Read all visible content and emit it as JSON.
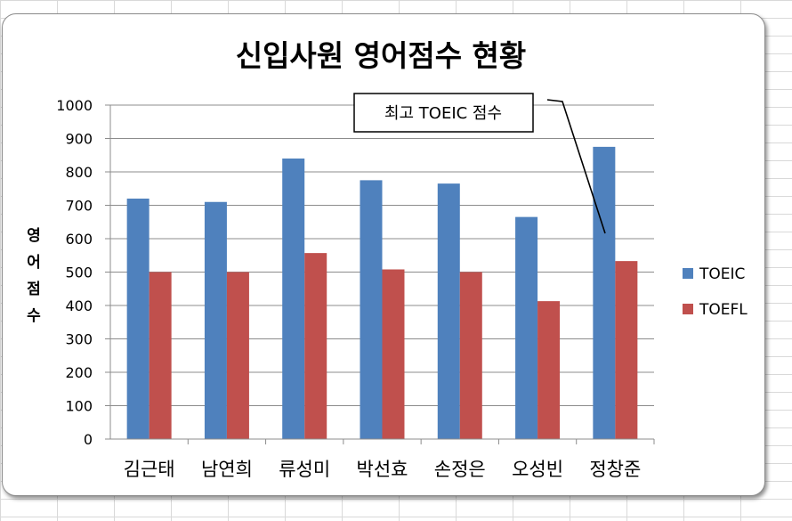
{
  "chart_data": {
    "type": "bar",
    "title": "신입사원 영어점수 현황",
    "ylabel": "영어점수",
    "categories": [
      "김근태",
      "남연희",
      "류성미",
      "박선효",
      "손정은",
      "오성빈",
      "정창준"
    ],
    "series": [
      {
        "name": "TOEIC",
        "color": "#4f81bd",
        "values": [
          720,
          710,
          840,
          775,
          765,
          665,
          875
        ]
      },
      {
        "name": "TOEFL",
        "color": "#c0504d",
        "values": [
          500,
          500,
          557,
          508,
          500,
          413,
          533
        ]
      }
    ],
    "ylim": [
      0,
      1000
    ],
    "yticks": [
      0,
      100,
      200,
      300,
      400,
      500,
      600,
      700,
      800,
      900,
      1000
    ],
    "grid": true,
    "legend_position": "right",
    "annotation": {
      "text": "최고 TOEIC  점수",
      "target_category": "정창준",
      "target_series": "TOEIC"
    }
  }
}
